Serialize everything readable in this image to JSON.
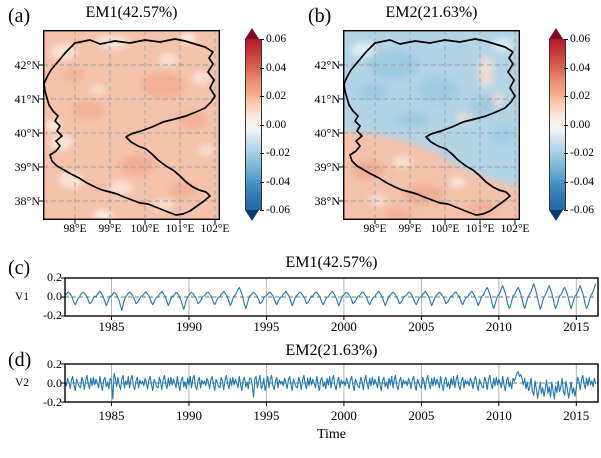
{
  "style": {
    "line_color": "#1f77b4",
    "colormap": "RdBu_r",
    "map_positive_color": "#f5c2aa",
    "map_negative_color": "#b2d4e5",
    "outline_color": "#000000",
    "gridline_color": "#9aa0a6"
  },
  "labels": {
    "time_axis": "Time",
    "v1": "V1",
    "v2": "V2"
  },
  "chart_data": [
    {
      "id": "a",
      "type": "heatmap",
      "panel_label": "(a)",
      "title": "EM1(42.57%)",
      "xticks": [
        "98°E",
        "99°E",
        "100°E",
        "101°E",
        "102°E"
      ],
      "yticks": [
        "42°N",
        "41°N",
        "40°N",
        "39°N",
        "38°N"
      ],
      "lon_range": [
        97.1,
        102.2
      ],
      "lat_range": [
        37.4,
        43.0
      ],
      "colorbar_ticks": [
        "0.06",
        "0.04",
        "0.02",
        "0.00",
        "-0.02",
        "-0.04",
        "-0.06"
      ],
      "colorbar_range": [
        -0.06,
        0.06
      ],
      "colormap": "RdBu_r",
      "grid": true,
      "pattern": "spatially uniform weak positive loadings (about +0.01 to +0.02) over the whole domain, black study-region outline"
    },
    {
      "id": "b",
      "type": "heatmap",
      "panel_label": "(b)",
      "title": "EM2(21.63%)",
      "xticks": [
        "98°E",
        "99°E",
        "100°E",
        "101°E",
        "102°E"
      ],
      "yticks": [
        "42°N",
        "41°N",
        "40°N",
        "39°N",
        "38°N"
      ],
      "lon_range": [
        97.1,
        102.2
      ],
      "lat_range": [
        37.4,
        43.0
      ],
      "colorbar_ticks": [
        "0.06",
        "0.04",
        "0.02",
        "0.00",
        "-0.02",
        "-0.04",
        "-0.06"
      ],
      "colorbar_range": [
        -0.06,
        0.06
      ],
      "colormap": "RdBu_r",
      "grid": true,
      "pattern": "north-south dipole: weak negative loadings (about -0.01 to -0.03) north of ~40°N, weak positive (about +0.01 to +0.02) in the south"
    },
    {
      "id": "c",
      "type": "line",
      "panel_label": "(c)",
      "title": "EM1(42.57%)",
      "ylabel": "V1",
      "xlim": [
        1982.0,
        2016.4
      ],
      "ylim": [
        -0.2,
        0.2
      ],
      "xticks": [
        "1985",
        "1990",
        "1995",
        "2000",
        "2005",
        "2010",
        "2015"
      ],
      "yticks": [
        "0.2",
        "0.0",
        "-0.2"
      ],
      "zero_line": true,
      "grid": true,
      "x_start": 1982.0,
      "x_step": 0.0833333,
      "values": [
        0.01,
        0.03,
        0.05,
        0.05,
        0.03,
        0.01,
        -0.02,
        -0.06,
        -0.08,
        -0.05,
        -0.02,
        0.0,
        0.02,
        0.04,
        0.05,
        0.04,
        0.02,
        0.0,
        -0.03,
        -0.07,
        -0.06,
        -0.04,
        -0.01,
        0.01,
        0.0,
        0.03,
        0.04,
        0.06,
        0.04,
        0.02,
        -0.01,
        -0.05,
        -0.09,
        -0.06,
        -0.02,
        0.01,
        0.01,
        0.03,
        0.05,
        0.04,
        0.02,
        -0.01,
        -0.04,
        -0.09,
        -0.14,
        -0.08,
        -0.03,
        0.0,
        0.02,
        0.04,
        0.05,
        0.04,
        0.02,
        0.0,
        -0.03,
        -0.07,
        -0.06,
        -0.04,
        -0.01,
        0.01,
        0.01,
        0.03,
        0.05,
        0.05,
        0.03,
        0.01,
        -0.02,
        -0.06,
        -0.08,
        -0.05,
        -0.02,
        0.0,
        0.0,
        0.03,
        0.04,
        0.06,
        0.04,
        0.02,
        -0.01,
        -0.05,
        -0.09,
        -0.06,
        -0.02,
        0.01,
        0.01,
        0.03,
        0.05,
        0.04,
        0.02,
        -0.01,
        -0.04,
        -0.09,
        -0.13,
        -0.08,
        -0.03,
        0.0,
        0.02,
        0.04,
        0.05,
        0.04,
        0.02,
        0.0,
        -0.03,
        -0.07,
        -0.06,
        -0.04,
        -0.01,
        0.01,
        0.01,
        0.03,
        0.05,
        0.05,
        0.03,
        0.01,
        -0.02,
        -0.06,
        -0.08,
        -0.05,
        -0.02,
        0.0,
        0.0,
        0.03,
        0.04,
        0.06,
        0.04,
        0.02,
        -0.01,
        -0.05,
        -0.09,
        -0.06,
        -0.02,
        0.01,
        0.02,
        0.05,
        0.08,
        0.1,
        0.07,
        0.03,
        -0.02,
        -0.08,
        -0.12,
        -0.08,
        -0.03,
        0.01,
        0.02,
        0.04,
        0.05,
        0.04,
        0.02,
        0.0,
        -0.03,
        -0.07,
        -0.06,
        -0.04,
        -0.01,
        0.01,
        0.01,
        0.03,
        0.05,
        0.05,
        0.03,
        0.01,
        -0.02,
        -0.06,
        -0.08,
        -0.05,
        -0.02,
        0.0,
        0.0,
        0.03,
        0.04,
        0.06,
        0.04,
        0.02,
        -0.01,
        -0.05,
        -0.09,
        -0.06,
        -0.02,
        0.01,
        0.02,
        0.04,
        0.05,
        0.04,
        0.02,
        0.0,
        -0.03,
        -0.07,
        -0.06,
        -0.04,
        -0.01,
        0.01,
        0.01,
        0.03,
        0.05,
        0.05,
        0.03,
        0.01,
        -0.02,
        -0.06,
        -0.08,
        -0.05,
        -0.02,
        0.0,
        0.0,
        0.03,
        0.04,
        0.06,
        0.04,
        0.02,
        -0.01,
        -0.05,
        -0.09,
        -0.06,
        -0.02,
        0.01,
        0.02,
        0.04,
        0.05,
        0.04,
        0.02,
        0.0,
        -0.03,
        -0.07,
        -0.06,
        -0.04,
        -0.01,
        0.01,
        0.01,
        0.03,
        0.05,
        0.05,
        0.03,
        0.01,
        -0.02,
        -0.06,
        -0.08,
        -0.05,
        -0.02,
        0.0,
        0.0,
        0.03,
        0.04,
        0.06,
        0.04,
        0.02,
        -0.01,
        -0.05,
        -0.09,
        -0.06,
        -0.02,
        0.01,
        0.02,
        0.04,
        0.05,
        0.04,
        0.02,
        0.0,
        -0.03,
        -0.07,
        -0.06,
        -0.04,
        -0.01,
        0.01,
        0.01,
        0.03,
        0.05,
        0.05,
        0.03,
        0.01,
        -0.02,
        -0.06,
        -0.08,
        -0.05,
        -0.02,
        0.0,
        0.0,
        0.03,
        0.04,
        0.06,
        0.04,
        0.02,
        -0.01,
        -0.05,
        -0.09,
        -0.06,
        -0.02,
        0.01,
        0.02,
        0.04,
        0.05,
        0.04,
        0.02,
        0.0,
        -0.03,
        -0.07,
        -0.06,
        -0.04,
        -0.01,
        0.01,
        0.01,
        0.03,
        0.05,
        0.05,
        0.03,
        0.01,
        -0.02,
        -0.06,
        -0.08,
        -0.05,
        -0.02,
        0.0,
        0.0,
        0.03,
        0.04,
        0.06,
        0.04,
        0.02,
        -0.01,
        -0.05,
        -0.09,
        -0.06,
        -0.02,
        0.01,
        0.02,
        0.05,
        0.08,
        0.1,
        0.07,
        0.03,
        -0.02,
        -0.08,
        -0.12,
        -0.08,
        -0.03,
        0.01,
        0.02,
        0.05,
        0.09,
        0.12,
        0.08,
        0.04,
        -0.02,
        -0.08,
        -0.12,
        -0.09,
        -0.04,
        0.01,
        0.02,
        0.05,
        0.08,
        0.1,
        0.07,
        0.03,
        -0.02,
        -0.08,
        -0.12,
        -0.08,
        -0.03,
        0.01,
        0.03,
        0.06,
        0.1,
        0.14,
        0.1,
        0.05,
        -0.01,
        -0.07,
        -0.13,
        -0.1,
        -0.04,
        0.0,
        0.02,
        0.05,
        0.09,
        0.12,
        0.08,
        0.04,
        -0.02,
        -0.08,
        -0.12,
        -0.09,
        -0.04,
        0.01,
        0.02,
        0.05,
        0.08,
        0.1,
        0.07,
        0.03,
        -0.02,
        -0.08,
        -0.12,
        -0.08,
        -0.03,
        0.01,
        0.02,
        0.05,
        0.09,
        0.12,
        0.08,
        0.04,
        -0.02,
        -0.08,
        -0.12,
        -0.09,
        -0.04,
        0.01,
        0.03,
        0.06,
        0.1,
        0.14
      ]
    },
    {
      "id": "d",
      "type": "line",
      "panel_label": "(d)",
      "title": "EM2(21.63%)",
      "ylabel": "V2",
      "xlabel": "Time",
      "xlim": [
        1982.0,
        2016.4
      ],
      "ylim": [
        -0.2,
        0.2
      ],
      "xticks": [
        "1985",
        "1990",
        "1995",
        "2000",
        "2005",
        "2010",
        "2015"
      ],
      "yticks": [
        "0.2",
        "0.0",
        "-0.2"
      ],
      "zero_line": true,
      "grid": true,
      "x_start": 1982.0,
      "x_step": 0.0833333,
      "values": [
        0.02,
        -0.03,
        0.05,
        0.01,
        -0.06,
        0.03,
        0.07,
        -0.02,
        -0.08,
        0.04,
        0.0,
        -0.04,
        -0.05,
        0.06,
        0.02,
        -0.07,
        0.03,
        0.08,
        -0.01,
        -0.06,
        0.05,
        -0.03,
        0.06,
        -0.02,
        0.04,
        0.0,
        -0.05,
        0.07,
        -0.02,
        -0.08,
        0.03,
        0.06,
        -0.04,
        0.01,
        -0.06,
        0.05,
        0.03,
        -0.17,
        0.1,
        0.05,
        -0.04,
        0.06,
        -0.02,
        -0.07,
        0.04,
        0.08,
        -0.05,
        0.02,
        -0.02,
        0.07,
        -0.05,
        0.04,
        0.08,
        -0.03,
        -0.07,
        0.02,
        0.06,
        -0.05,
        0.03,
        -0.01,
        0.02,
        -0.03,
        0.05,
        0.01,
        -0.06,
        0.03,
        0.07,
        -0.02,
        -0.08,
        0.04,
        0.0,
        -0.04,
        -0.05,
        0.06,
        0.02,
        -0.07,
        0.03,
        0.08,
        -0.01,
        -0.06,
        0.05,
        -0.03,
        0.06,
        -0.02,
        0.04,
        0.0,
        -0.05,
        0.07,
        -0.02,
        -0.08,
        0.03,
        0.06,
        -0.04,
        0.01,
        -0.06,
        0.05,
        -0.02,
        0.07,
        -0.05,
        0.04,
        0.08,
        -0.03,
        -0.07,
        0.02,
        0.06,
        -0.05,
        0.03,
        -0.01,
        0.02,
        -0.03,
        0.05,
        0.01,
        -0.06,
        0.03,
        0.07,
        -0.02,
        -0.08,
        0.04,
        0.0,
        -0.04,
        -0.05,
        0.06,
        0.02,
        -0.07,
        0.03,
        0.08,
        -0.01,
        -0.06,
        0.05,
        -0.03,
        0.06,
        -0.02,
        0.04,
        0.0,
        -0.05,
        0.07,
        -0.02,
        -0.08,
        0.03,
        0.06,
        -0.04,
        0.01,
        -0.06,
        0.05,
        0.05,
        -0.02,
        -0.15,
        0.04,
        0.07,
        -0.05,
        0.02,
        0.08,
        -0.06,
        -0.03,
        0.05,
        -0.08,
        -0.02,
        0.07,
        -0.05,
        0.04,
        0.08,
        -0.03,
        -0.07,
        0.02,
        0.06,
        -0.05,
        0.03,
        -0.01,
        0.02,
        -0.03,
        0.05,
        0.01,
        -0.06,
        0.03,
        0.07,
        -0.02,
        -0.08,
        0.04,
        0.0,
        -0.04,
        -0.05,
        0.06,
        0.02,
        -0.07,
        0.03,
        0.08,
        -0.01,
        -0.06,
        0.05,
        -0.03,
        0.06,
        -0.02,
        0.04,
        0.0,
        -0.05,
        0.07,
        -0.02,
        -0.08,
        0.03,
        0.06,
        -0.04,
        0.01,
        -0.06,
        0.05,
        -0.02,
        0.07,
        -0.05,
        0.04,
        0.08,
        -0.03,
        -0.07,
        0.02,
        0.06,
        -0.05,
        0.03,
        -0.01,
        0.02,
        -0.03,
        0.05,
        0.01,
        -0.06,
        0.03,
        0.07,
        -0.02,
        -0.08,
        0.04,
        0.0,
        -0.04,
        -0.05,
        0.06,
        0.02,
        -0.07,
        0.03,
        0.08,
        -0.01,
        -0.06,
        0.05,
        -0.03,
        0.06,
        -0.02,
        0.04,
        0.0,
        -0.05,
        0.07,
        -0.02,
        -0.08,
        0.03,
        0.06,
        -0.04,
        0.01,
        -0.06,
        0.05,
        -0.02,
        0.07,
        -0.05,
        0.04,
        0.08,
        -0.03,
        -0.07,
        0.02,
        0.06,
        -0.05,
        0.03,
        -0.01,
        0.02,
        -0.03,
        0.05,
        0.01,
        -0.06,
        0.03,
        0.07,
        -0.02,
        -0.08,
        0.04,
        0.0,
        -0.04,
        -0.05,
        0.06,
        0.02,
        -0.07,
        0.03,
        0.08,
        -0.01,
        -0.06,
        0.05,
        -0.03,
        0.06,
        -0.02,
        0.04,
        0.0,
        -0.05,
        0.07,
        -0.02,
        -0.08,
        0.03,
        0.06,
        -0.04,
        0.01,
        -0.06,
        0.05,
        -0.02,
        0.07,
        -0.05,
        0.04,
        0.08,
        -0.03,
        -0.07,
        0.02,
        0.06,
        -0.05,
        0.03,
        -0.01,
        0.02,
        -0.03,
        0.05,
        0.01,
        -0.06,
        0.03,
        0.07,
        -0.02,
        -0.08,
        0.04,
        0.0,
        -0.04,
        -0.05,
        0.06,
        0.02,
        -0.07,
        0.03,
        0.08,
        -0.01,
        -0.06,
        0.05,
        -0.03,
        0.06,
        -0.02,
        0.04,
        0.0,
        -0.05,
        0.07,
        -0.02,
        -0.08,
        0.03,
        0.06,
        -0.04,
        0.01,
        -0.06,
        0.05,
        0.02,
        0.06,
        0.1,
        0.12,
        0.07,
        0.09,
        0.04,
        -0.02,
        0.05,
        -0.06,
        0.01,
        -0.08,
        -0.04,
        0.05,
        -0.09,
        -0.13,
        0.02,
        -0.06,
        -0.16,
        -0.08,
        0.01,
        -0.11,
        -0.05,
        -0.14,
        -0.06,
        0.03,
        -0.11,
        -0.04,
        -0.15,
        0.01,
        -0.08,
        -0.17,
        -0.03,
        -0.1,
        0.02,
        -0.09,
        -0.04,
        0.05,
        -0.09,
        -0.13,
        0.02,
        -0.06,
        -0.16,
        -0.08,
        0.01,
        -0.11,
        -0.05,
        -0.14,
        -0.05,
        0.06,
        0.02,
        -0.07,
        0.03,
        0.08,
        -0.01,
        -0.06,
        0.05,
        -0.03,
        0.06,
        -0.02,
        0.02,
        -0.04,
        0.05,
        -0.01
      ]
    }
  ]
}
